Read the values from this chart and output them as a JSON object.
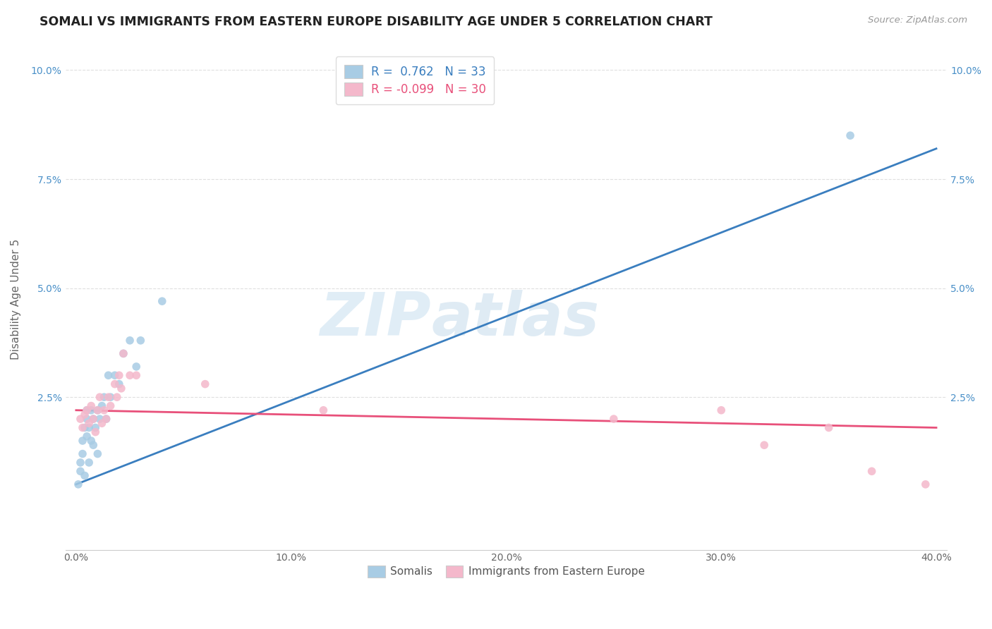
{
  "title": "SOMALI VS IMMIGRANTS FROM EASTERN EUROPE DISABILITY AGE UNDER 5 CORRELATION CHART",
  "source": "Source: ZipAtlas.com",
  "ylabel": "Disability Age Under 5",
  "xlim": [
    -0.005,
    0.405
  ],
  "ylim": [
    -0.01,
    0.105
  ],
  "xtick_labels": [
    "0.0%",
    "10.0%",
    "20.0%",
    "30.0%",
    "40.0%"
  ],
  "xtick_values": [
    0.0,
    0.1,
    0.2,
    0.3,
    0.4
  ],
  "ytick_labels": [
    "2.5%",
    "5.0%",
    "7.5%",
    "10.0%"
  ],
  "ytick_values": [
    0.025,
    0.05,
    0.075,
    0.1
  ],
  "legend_label1": "Somalis",
  "legend_label2": "Immigrants from Eastern Europe",
  "R1": "0.762",
  "N1": "33",
  "R2": "-0.099",
  "N2": "30",
  "color1": "#a8cce4",
  "color2": "#f4b8cb",
  "line_color1": "#3a7ebf",
  "line_color2": "#e8507a",
  "somali_x": [
    0.001,
    0.002,
    0.002,
    0.003,
    0.003,
    0.004,
    0.004,
    0.005,
    0.005,
    0.005,
    0.006,
    0.006,
    0.007,
    0.007,
    0.008,
    0.008,
    0.009,
    0.01,
    0.01,
    0.011,
    0.012,
    0.013,
    0.014,
    0.015,
    0.016,
    0.018,
    0.02,
    0.022,
    0.025,
    0.028,
    0.03,
    0.04,
    0.36
  ],
  "somali_y": [
    0.005,
    0.008,
    0.01,
    0.012,
    0.015,
    0.007,
    0.018,
    0.016,
    0.02,
    0.022,
    0.01,
    0.018,
    0.015,
    0.022,
    0.014,
    0.02,
    0.018,
    0.012,
    0.022,
    0.02,
    0.023,
    0.025,
    0.02,
    0.03,
    0.025,
    0.03,
    0.028,
    0.035,
    0.038,
    0.032,
    0.038,
    0.047,
    0.085
  ],
  "eastern_x": [
    0.002,
    0.003,
    0.004,
    0.005,
    0.006,
    0.007,
    0.008,
    0.009,
    0.01,
    0.011,
    0.012,
    0.013,
    0.014,
    0.015,
    0.016,
    0.018,
    0.019,
    0.02,
    0.021,
    0.022,
    0.025,
    0.028,
    0.06,
    0.115,
    0.25,
    0.3,
    0.32,
    0.35,
    0.37,
    0.395
  ],
  "eastern_y": [
    0.02,
    0.018,
    0.021,
    0.022,
    0.019,
    0.023,
    0.02,
    0.017,
    0.022,
    0.025,
    0.019,
    0.022,
    0.02,
    0.025,
    0.023,
    0.028,
    0.025,
    0.03,
    0.027,
    0.035,
    0.03,
    0.03,
    0.028,
    0.022,
    0.02,
    0.022,
    0.014,
    0.018,
    0.008,
    0.005
  ],
  "blue_line_x0": 0.0,
  "blue_line_y0": 0.005,
  "blue_line_x1": 0.4,
  "blue_line_y1": 0.082,
  "pink_line_x0": 0.0,
  "pink_line_y0": 0.022,
  "pink_line_x1": 0.4,
  "pink_line_y1": 0.018,
  "background_color": "#ffffff",
  "grid_color": "#cccccc",
  "watermark_zip": "ZIP",
  "watermark_atlas": "atlas",
  "title_fontsize": 12.5,
  "axis_label_fontsize": 11,
  "tick_fontsize": 10
}
